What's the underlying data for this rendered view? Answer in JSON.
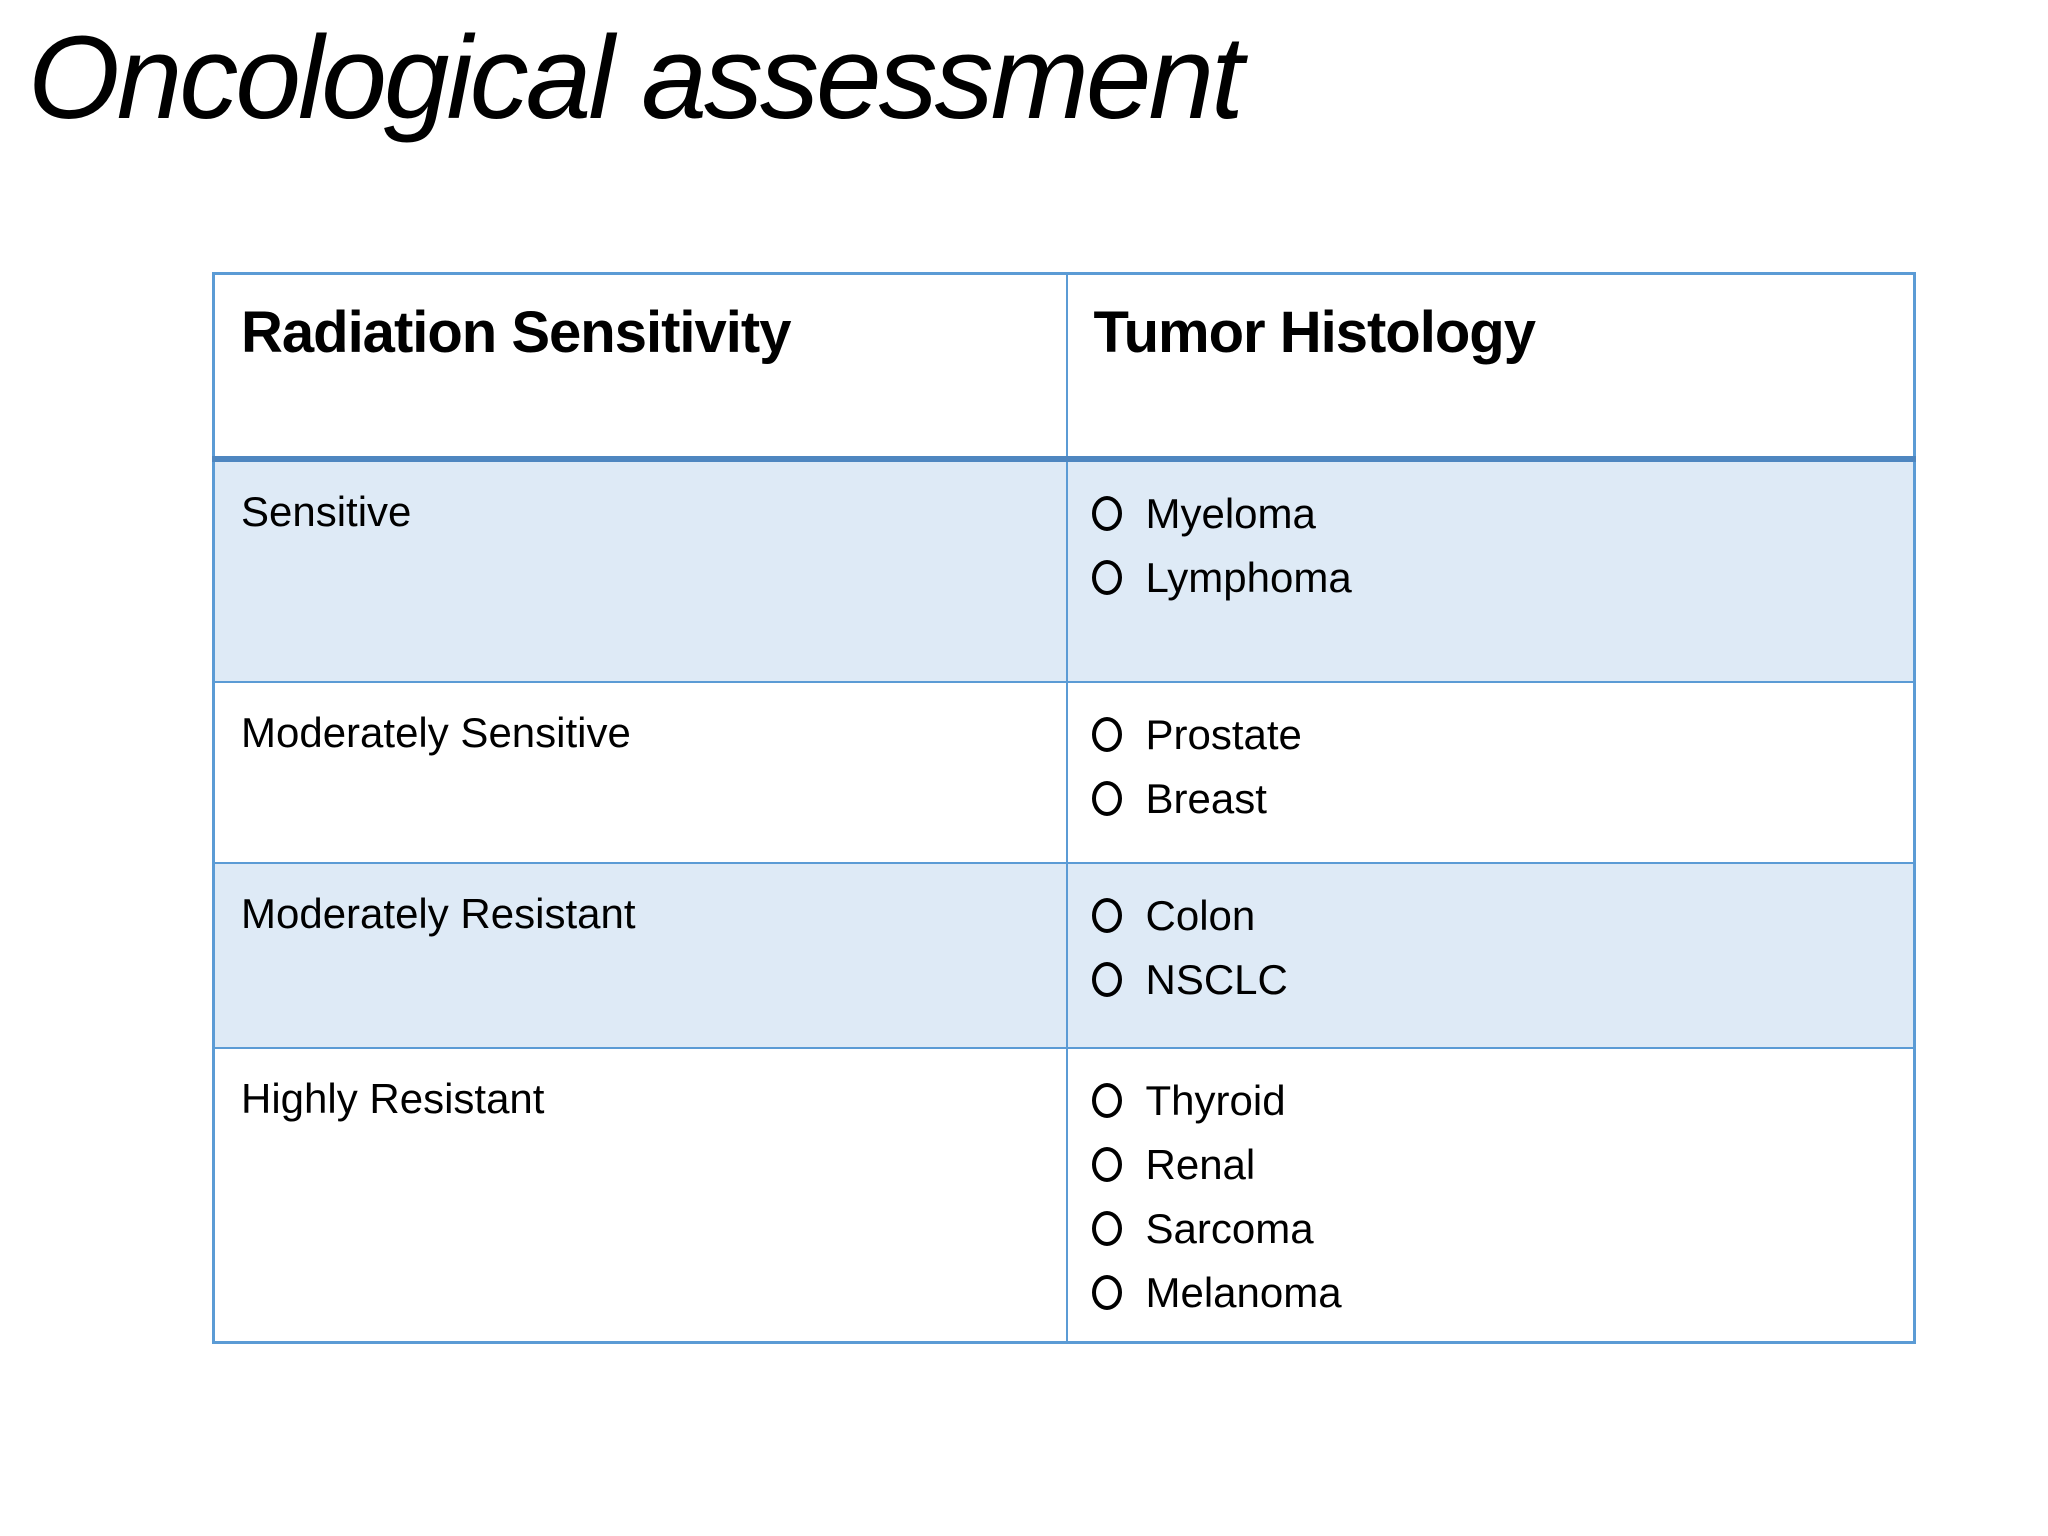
{
  "slide": {
    "title": "Oncological assessment",
    "colors": {
      "table_border": "#5B9BD5",
      "header_underline": "#4E86C0",
      "band_fill": "#DEEAF6",
      "text": "#000000",
      "background": "#FFFFFF"
    },
    "icons": {
      "bullet": "open-circle"
    },
    "table": {
      "headers": [
        "Radiation Sensitivity",
        "Tumor Histology"
      ],
      "rows": [
        {
          "sensitivity": "Sensitive",
          "shaded": true,
          "histologies": [
            "Myeloma",
            "Lymphoma"
          ]
        },
        {
          "sensitivity": "Moderately Sensitive",
          "shaded": false,
          "histologies": [
            "Prostate",
            "Breast"
          ]
        },
        {
          "sensitivity": "Moderately Resistant",
          "shaded": true,
          "histologies": [
            "Colon",
            "NSCLC"
          ]
        },
        {
          "sensitivity": "Highly Resistant",
          "shaded": false,
          "histologies": [
            "Thyroid",
            "Renal",
            "Sarcoma",
            "Melanoma"
          ]
        }
      ]
    }
  }
}
